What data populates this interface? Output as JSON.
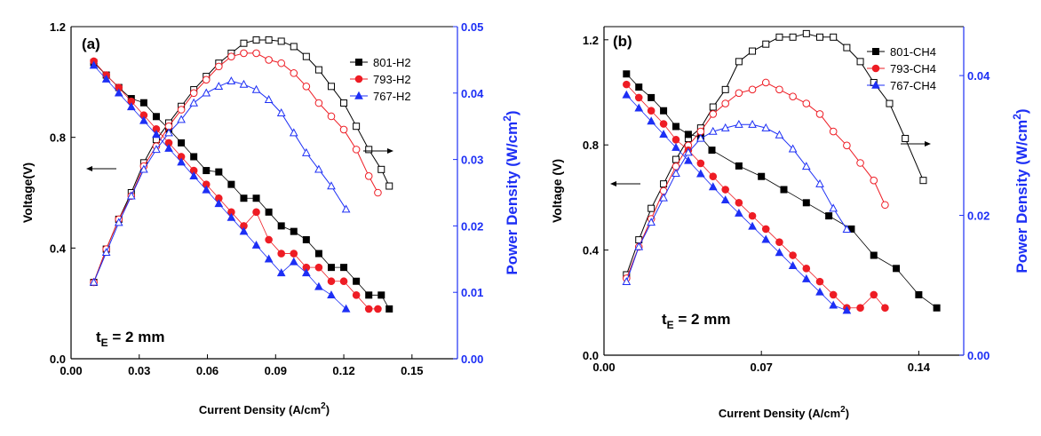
{
  "chart_data": [
    {
      "type": "line",
      "panel_label": "(a)",
      "xlabel": "Current Density (A/cm",
      "xlabel_sup": "2",
      "xlabel_end": ")",
      "ylabel": "Voltage(V)",
      "y2label": "Power Density (W/cm",
      "y2label_sup": "2",
      "y2label_end": ")",
      "xlim": [
        0,
        0.17
      ],
      "ylim": [
        0,
        1.2
      ],
      "y2lim": [
        0,
        0.05
      ],
      "x_ticks": [
        "0.00",
        "0.03",
        "0.06",
        "0.09",
        "0.12",
        "0.15"
      ],
      "x_tick_values": [
        0,
        0.03,
        0.06,
        0.09,
        0.12,
        0.15
      ],
      "y_ticks": [
        "0.0",
        "0.4",
        "0.8",
        "1.2"
      ],
      "y_tick_values": [
        0,
        0.4,
        0.8,
        1.2
      ],
      "y2_ticks": [
        "0.00",
        "0.01",
        "0.02",
        "0.03",
        "0.04",
        "0.05"
      ],
      "y2_tick_values": [
        0,
        0.01,
        0.02,
        0.03,
        0.04,
        0.05
      ],
      "thickness_prefix": "t",
      "thickness_sub": "E",
      "thickness_suffix": " = 2 mm",
      "series": [
        {
          "name": "801-H2",
          "color": "#000000",
          "marker": "square",
          "voltage": {
            "x": [
              0.01,
              0.0155,
              0.021,
              0.0265,
              0.032,
              0.0375,
              0.043,
              0.0485,
              0.054,
              0.0595,
              0.065,
              0.0705,
              0.076,
              0.0815,
              0.087,
              0.0925,
              0.098,
              0.1035,
              0.109,
              0.1145,
              0.12,
              0.1255,
              0.131,
              0.1365,
              0.14
            ],
            "y": [
              1.07,
              1.025,
              0.98,
              0.94,
              0.925,
              0.875,
              0.83,
              0.78,
              0.73,
              0.68,
              0.675,
              0.63,
              0.58,
              0.58,
              0.53,
              0.48,
              0.46,
              0.43,
              0.38,
              0.33,
              0.33,
              0.28,
              0.23,
              0.23,
              0.18
            ]
          },
          "power": {
            "x": [
              0.01,
              0.0155,
              0.021,
              0.0265,
              0.032,
              0.0375,
              0.043,
              0.0485,
              0.054,
              0.0595,
              0.065,
              0.0705,
              0.076,
              0.0815,
              0.087,
              0.0925,
              0.098,
              0.1035,
              0.109,
              0.1145,
              0.12,
              0.1255,
              0.131,
              0.1365,
              0.14
            ],
            "y": [
              0.0115,
              0.0165,
              0.021,
              0.025,
              0.0295,
              0.033,
              0.0355,
              0.038,
              0.0405,
              0.0425,
              0.0445,
              0.046,
              0.0475,
              0.048,
              0.048,
              0.0478,
              0.047,
              0.0455,
              0.0435,
              0.041,
              0.0385,
              0.035,
              0.0315,
              0.0285,
              0.026
            ]
          }
        },
        {
          "name": "793-H2",
          "color": "#ee1c24",
          "marker": "circle",
          "voltage": {
            "x": [
              0.01,
              0.0155,
              0.021,
              0.0265,
              0.032,
              0.0375,
              0.043,
              0.0485,
              0.054,
              0.0595,
              0.065,
              0.0705,
              0.076,
              0.0815,
              0.087,
              0.0925,
              0.098,
              0.1035,
              0.109,
              0.1145,
              0.12,
              0.1255,
              0.131,
              0.135
            ],
            "y": [
              1.075,
              1.025,
              0.98,
              0.93,
              0.88,
              0.83,
              0.78,
              0.73,
              0.68,
              0.63,
              0.58,
              0.53,
              0.48,
              0.53,
              0.43,
              0.38,
              0.38,
              0.33,
              0.33,
              0.28,
              0.28,
              0.23,
              0.18,
              0.18
            ]
          },
          "power": {
            "x": [
              0.01,
              0.0155,
              0.021,
              0.0265,
              0.032,
              0.0375,
              0.043,
              0.0485,
              0.054,
              0.0595,
              0.065,
              0.0705,
              0.076,
              0.0815,
              0.087,
              0.0925,
              0.098,
              0.1035,
              0.109,
              0.1145,
              0.12,
              0.1255,
              0.131,
              0.135
            ],
            "y": [
              0.0115,
              0.0165,
              0.021,
              0.0245,
              0.029,
              0.032,
              0.035,
              0.0375,
              0.04,
              0.042,
              0.044,
              0.0455,
              0.046,
              0.046,
              0.045,
              0.0445,
              0.043,
              0.041,
              0.0385,
              0.0365,
              0.0345,
              0.0315,
              0.0275,
              0.025
            ]
          }
        },
        {
          "name": "767-H2",
          "color": "#1d2ff5",
          "marker": "triangle",
          "voltage": {
            "x": [
              0.01,
              0.0155,
              0.021,
              0.0265,
              0.032,
              0.0375,
              0.043,
              0.0485,
              0.054,
              0.0595,
              0.065,
              0.0705,
              0.076,
              0.0815,
              0.087,
              0.0925,
              0.098,
              0.1035,
              0.109,
              0.1145,
              0.121
            ],
            "y": [
              1.06,
              1.01,
              0.96,
              0.91,
              0.86,
              0.81,
              0.76,
              0.71,
              0.66,
              0.61,
              0.56,
              0.51,
              0.46,
              0.41,
              0.36,
              0.31,
              0.35,
              0.31,
              0.26,
              0.23,
              0.18
            ]
          },
          "power": {
            "x": [
              0.01,
              0.0155,
              0.021,
              0.0265,
              0.032,
              0.0375,
              0.043,
              0.0485,
              0.054,
              0.0595,
              0.065,
              0.0705,
              0.076,
              0.0815,
              0.087,
              0.0925,
              0.098,
              0.1035,
              0.109,
              0.1145,
              0.121
            ],
            "y": [
              0.0115,
              0.016,
              0.0205,
              0.0245,
              0.0285,
              0.0315,
              0.034,
              0.036,
              0.0385,
              0.04,
              0.041,
              0.0418,
              0.0413,
              0.0405,
              0.039,
              0.037,
              0.034,
              0.031,
              0.0285,
              0.026,
              0.0225
            ]
          }
        }
      ],
      "arrows": [
        {
          "dir": "left"
        },
        {
          "dir": "right"
        }
      ]
    },
    {
      "type": "line",
      "panel_label": "(b)",
      "xlabel": "Current Density (A/cm",
      "xlabel_sup": "2",
      "xlabel_end": ")",
      "ylabel": "Voltage (V)",
      "y2label": "Power Density (W/cm",
      "y2label_sup": "2",
      "y2label_end": ")",
      "xlim": [
        0,
        0.16
      ],
      "ylim": [
        0,
        1.25
      ],
      "y2lim": [
        0,
        0.047
      ],
      "x_ticks": [
        "0.00",
        "0.07",
        "0.14"
      ],
      "x_tick_values": [
        0,
        0.07,
        0.14
      ],
      "y_ticks": [
        "0.0",
        "0.4",
        "0.8",
        "1.2"
      ],
      "y_tick_values": [
        0,
        0.4,
        0.8,
        1.2
      ],
      "y2_ticks": [
        "0.00",
        "0.02",
        "0.04"
      ],
      "y2_tick_values": [
        0,
        0.02,
        0.04
      ],
      "thickness_prefix": "t",
      "thickness_sub": "E",
      "thickness_suffix": " = 2 mm",
      "series": [
        {
          "name": "801-CH4",
          "color": "#000000",
          "marker": "square",
          "voltage": {
            "x": [
              0.01,
              0.0155,
              0.021,
              0.0265,
              0.032,
              0.0375,
              0.043,
              0.048,
              0.06,
              0.07,
              0.08,
              0.09,
              0.1,
              0.11,
              0.12,
              0.13,
              0.14,
              0.148
            ],
            "y": [
              1.07,
              1.02,
              0.98,
              0.93,
              0.87,
              0.84,
              0.83,
              0.78,
              0.72,
              0.68,
              0.63,
              0.58,
              0.53,
              0.48,
              0.38,
              0.33,
              0.23,
              0.18
            ]
          },
          "power": {
            "x": [
              0.01,
              0.0155,
              0.021,
              0.0265,
              0.032,
              0.0375,
              0.043,
              0.0485,
              0.054,
              0.06,
              0.066,
              0.072,
              0.078,
              0.084,
              0.09,
              0.096,
              0.102,
              0.108,
              0.114,
              0.12,
              0.127,
              0.134,
              0.142
            ],
            "y": [
              0.0115,
              0.0165,
              0.021,
              0.0245,
              0.028,
              0.031,
              0.0325,
              0.0355,
              0.038,
              0.042,
              0.0435,
              0.0445,
              0.0455,
              0.0455,
              0.046,
              0.0455,
              0.0455,
              0.044,
              0.042,
              0.039,
              0.036,
              0.031,
              0.025
            ]
          }
        },
        {
          "name": "793-CH4",
          "color": "#ee1c24",
          "marker": "circle",
          "voltage": {
            "x": [
              0.01,
              0.0155,
              0.021,
              0.0265,
              0.032,
              0.0375,
              0.043,
              0.0485,
              0.054,
              0.06,
              0.066,
              0.072,
              0.078,
              0.084,
              0.09,
              0.096,
              0.102,
              0.108,
              0.114,
              0.12,
              0.125
            ],
            "y": [
              1.03,
              0.98,
              0.93,
              0.88,
              0.82,
              0.78,
              0.73,
              0.68,
              0.63,
              0.58,
              0.53,
              0.48,
              0.43,
              0.38,
              0.33,
              0.28,
              0.23,
              0.18,
              0.18,
              0.23,
              0.18
            ]
          },
          "power": {
            "x": [
              0.01,
              0.0155,
              0.021,
              0.0265,
              0.032,
              0.0375,
              0.043,
              0.0485,
              0.054,
              0.06,
              0.066,
              0.072,
              0.078,
              0.084,
              0.09,
              0.096,
              0.102,
              0.108,
              0.114,
              0.12,
              0.125
            ],
            "y": [
              0.011,
              0.0155,
              0.0195,
              0.0235,
              0.027,
              0.03,
              0.032,
              0.0345,
              0.036,
              0.0375,
              0.038,
              0.039,
              0.038,
              0.037,
              0.036,
              0.0345,
              0.032,
              0.03,
              0.0275,
              0.025,
              0.0215
            ]
          }
        },
        {
          "name": "767-CH4",
          "color": "#1d2ff5",
          "marker": "triangle",
          "voltage": {
            "x": [
              0.01,
              0.0155,
              0.021,
              0.0265,
              0.032,
              0.0375,
              0.043,
              0.0485,
              0.054,
              0.06,
              0.066,
              0.072,
              0.078,
              0.084,
              0.09,
              0.096,
              0.102,
              0.108
            ],
            "y": [
              0.99,
              0.94,
              0.89,
              0.84,
              0.79,
              0.74,
              0.69,
              0.64,
              0.59,
              0.54,
              0.49,
              0.44,
              0.39,
              0.34,
              0.29,
              0.24,
              0.19,
              0.17
            ]
          },
          "power": {
            "x": [
              0.01,
              0.0155,
              0.021,
              0.0265,
              0.032,
              0.0375,
              0.043,
              0.0485,
              0.054,
              0.06,
              0.066,
              0.072,
              0.078,
              0.084,
              0.09,
              0.096,
              0.102,
              0.108
            ],
            "y": [
              0.0105,
              0.0155,
              0.019,
              0.0225,
              0.026,
              0.029,
              0.031,
              0.032,
              0.0325,
              0.033,
              0.033,
              0.0325,
              0.0315,
              0.0295,
              0.027,
              0.0245,
              0.021,
              0.018
            ]
          }
        }
      ],
      "arrows": [
        {
          "dir": "left"
        },
        {
          "dir": "right"
        }
      ]
    }
  ]
}
